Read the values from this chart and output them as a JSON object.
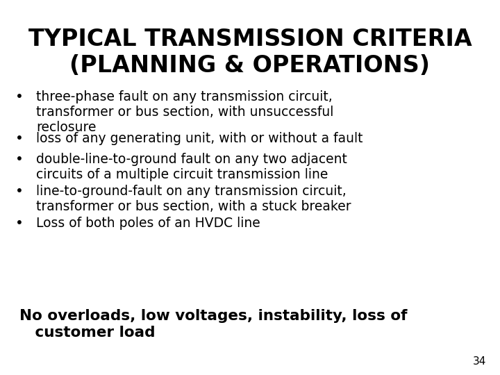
{
  "title_line1": "TYPICAL TRANSMISSION CRITERIA",
  "title_line2": "(PLANNING & OPERATIONS)",
  "bullet_items": [
    "three-phase fault on any transmission circuit,\ntransformer or bus section, with unsuccessful\nreclosure",
    "loss of any generating unit, with or without a fault",
    "double-line-to-ground fault on any two adjacent\ncircuits of a multiple circuit transmission line",
    "line-to-ground-fault on any transmission circuit,\ntransformer or bus section, with a stuck breaker",
    "Loss of both poles of an HVDC line"
  ],
  "footer_line1": "No overloads, low voltages, instability, loss of",
  "footer_line2": "   customer load",
  "page_number": "34",
  "background_color": "#ffffff",
  "text_color": "#000000",
  "title_fontsize": 24,
  "bullet_fontsize": 13.5,
  "footer_fontsize": 15.5
}
